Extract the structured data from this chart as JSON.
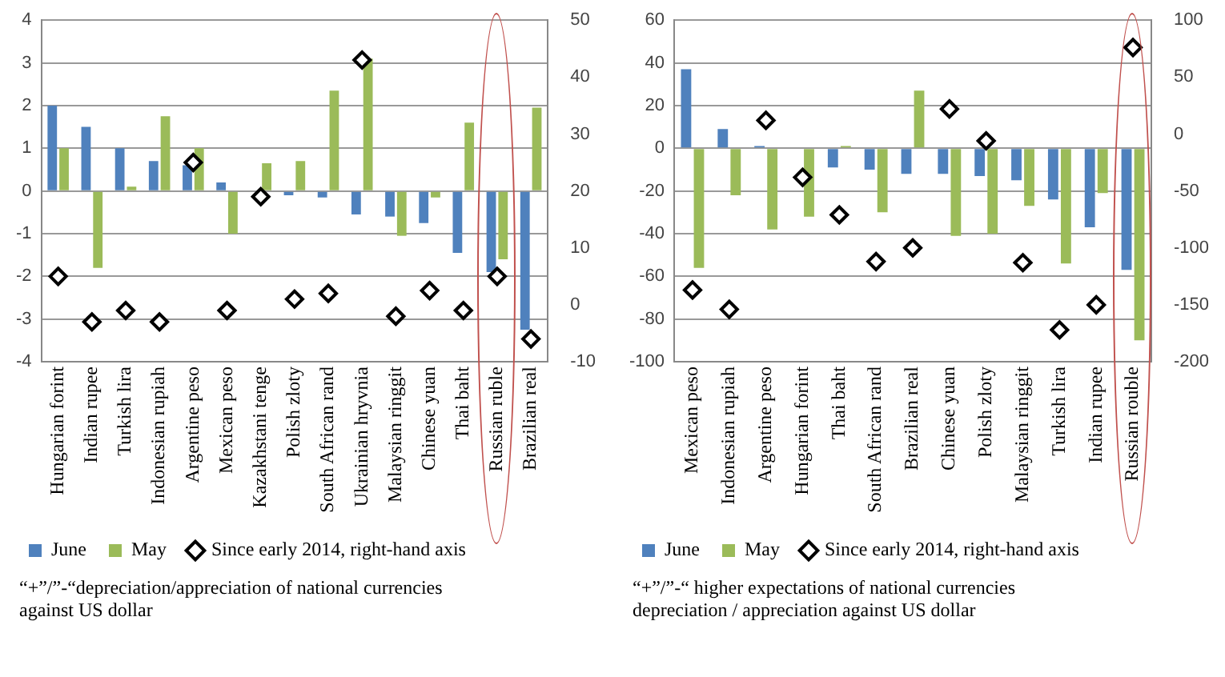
{
  "chart_data": [
    {
      "type": "bar",
      "categories": [
        "Hungarian forint",
        "Indian rupee",
        "Turkish lira",
        "Indonesian rupiah",
        "Argentine peso",
        "Mexican peso",
        "Kazakhstani tenge",
        "Polish zloty",
        "South African rand",
        "Ukrainian hryvnia",
        "Malaysian ringgit",
        "Chinese yuan",
        "Thai baht",
        "Russian ruble",
        "Brazilian real"
      ],
      "series": [
        {
          "name": "June",
          "color": "#4f81bd",
          "values": [
            2.0,
            1.5,
            1.0,
            0.7,
            0.6,
            0.2,
            0,
            -0.1,
            -0.15,
            -0.55,
            -0.6,
            -0.75,
            -1.45,
            -1.9,
            -3.25
          ]
        },
        {
          "name": "May",
          "color": "#9bbb59",
          "values": [
            1.0,
            -1.8,
            0.1,
            1.75,
            1.0,
            -1.0,
            0.65,
            0.7,
            2.35,
            3.1,
            -1.05,
            -0.15,
            1.6,
            -1.6,
            1.95
          ]
        },
        {
          "name": "Since early 2014, right-hand axis",
          "type": "scatter",
          "axis": "y2",
          "marker": "diamond",
          "color": "#000000",
          "values": [
            5,
            -3,
            -1,
            -3,
            25,
            -1,
            19,
            1,
            2,
            43,
            -2,
            2.5,
            -1,
            5,
            -6
          ]
        }
      ],
      "ylim": [
        -4,
        4
      ],
      "yticks": [
        -4,
        -3,
        -2,
        -1,
        0,
        1,
        2,
        3,
        4
      ],
      "y2lim": [
        -10,
        50
      ],
      "y2ticks": [
        -10,
        0,
        10,
        20,
        30,
        40,
        50
      ],
      "grid": "y",
      "legend": "bottom",
      "annotations": [
        "“+”/”-“depreciation/appreciation of national currencies against US dollar"
      ]
    },
    {
      "type": "bar",
      "categories": [
        "Mexican peso",
        "Indonesian rupiah",
        "Argentine peso",
        "Hungarian forint",
        "Thai baht",
        "South African rand",
        "Brazilian real",
        "Chinese yuan",
        "Polish zloty",
        "Malaysian ringgit",
        "Turkish lira",
        "Indian rupee",
        "Russian rouble"
      ],
      "series": [
        {
          "name": "June",
          "color": "#4f81bd",
          "values": [
            37,
            9,
            1,
            0,
            -9,
            -10,
            -12,
            -12,
            -13,
            -15,
            -24,
            -37,
            -57
          ]
        },
        {
          "name": "May",
          "color": "#9bbb59",
          "values": [
            -56,
            -22,
            -38,
            -32,
            1,
            -30,
            27,
            -41,
            -40,
            -27,
            -54,
            -21,
            -90
          ]
        },
        {
          "name": "Since early 2014, right-hand axis",
          "type": "scatter",
          "axis": "y2",
          "marker": "diamond",
          "color": "#000000",
          "values": [
            -137,
            -154,
            12,
            -38,
            -71,
            -112,
            -100,
            22,
            -6,
            -113,
            -172,
            -150,
            76
          ]
        }
      ],
      "ylim": [
        -100,
        60
      ],
      "yticks": [
        -100,
        -80,
        -60,
        -40,
        -20,
        0,
        20,
        40,
        60
      ],
      "y2lim": [
        -200,
        100
      ],
      "y2ticks": [
        -200,
        -150,
        -100,
        -50,
        0,
        50,
        100
      ],
      "grid": "y",
      "legend": "bottom",
      "annotations": [
        "“+”/”-“ higher expectations of national currencies depreciation / appreciation against US dollar"
      ]
    }
  ]
}
